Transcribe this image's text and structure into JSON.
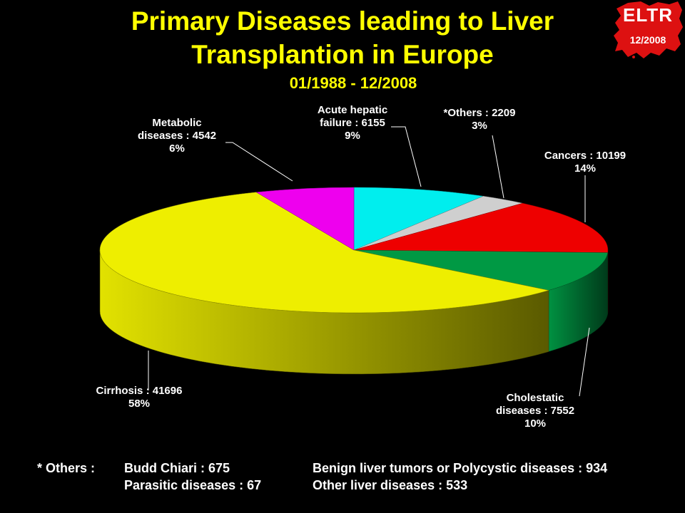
{
  "header": {
    "title_line1": "Primary Diseases leading to Liver",
    "title_line2": "Transplantion in Europe",
    "subtitle": "01/1988 - 12/2008"
  },
  "logo": {
    "main": "ELTR",
    "sub": "12/2008",
    "color": "#dd1111"
  },
  "chart_data": {
    "type": "pie",
    "title": "Primary Diseases leading to Liver Transplantion in Europe",
    "subtitle": "01/1988 - 12/2008",
    "style": "3d",
    "slices": [
      {
        "name": "Acute hepatic failure",
        "value": 6155,
        "percent": 9,
        "color": "#00eeee",
        "label_lines": [
          "Acute hepatic",
          "failure : 6155",
          "9%"
        ]
      },
      {
        "name": "*Others",
        "value": 2209,
        "percent": 3,
        "color": "#cfcfcf",
        "label_lines": [
          "*Others : 2209",
          "3%"
        ]
      },
      {
        "name": "Cancers",
        "value": 10199,
        "percent": 14,
        "color": "#ee0000",
        "label_lines": [
          "Cancers : 10199",
          "14%"
        ]
      },
      {
        "name": "Cholestatic diseases",
        "value": 7552,
        "percent": 10,
        "color": "#009944",
        "label_lines": [
          "Cholestatic",
          "diseases : 7552",
          "10%"
        ]
      },
      {
        "name": "Cirrhosis",
        "value": 41696,
        "percent": 58,
        "color": "#eeee00",
        "label_lines": [
          "Cirrhosis : 41696",
          "58%"
        ]
      },
      {
        "name": "Metabolic diseases",
        "value": 4542,
        "percent": 6,
        "color": "#ee00ee",
        "label_lines": [
          "Metabolic",
          "diseases : 4542",
          "6%"
        ]
      }
    ]
  },
  "footnote": {
    "prefix": "* Others :",
    "items": [
      "Budd Chiari : 675",
      "Benign liver tumors or Polycystic diseases : 934",
      "Parasitic diseases : 67",
      "Other liver diseases : 533"
    ]
  }
}
